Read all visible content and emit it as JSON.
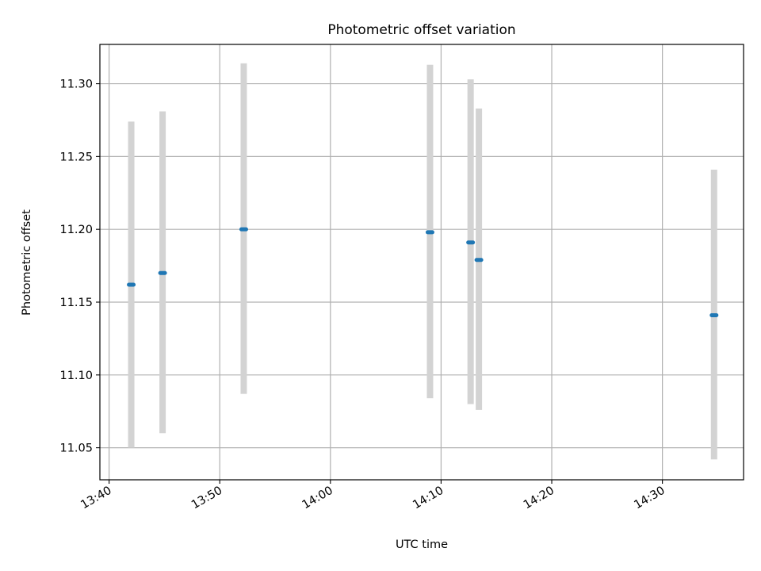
{
  "chart_data": {
    "type": "scatter",
    "title": "Photometric offset variation",
    "xlabel": "UTC time",
    "ylabel": "Photometric offset",
    "x_ticks": [
      "13:40",
      "13:50",
      "14:00",
      "14:10",
      "14:20",
      "14:30"
    ],
    "y_ticks": [
      "11.05",
      "11.10",
      "11.15",
      "11.20",
      "11.25",
      "11.30"
    ],
    "y_tick_values": [
      11.05,
      11.1,
      11.15,
      11.2,
      11.25,
      11.3
    ],
    "xlim": [
      "13:39:10",
      "14:37:20"
    ],
    "ylim": [
      11.028,
      11.327
    ],
    "grid": true,
    "marker_color": "#1f77b4",
    "errorbar_color": "#d3d3d3",
    "points": [
      {
        "x": "13:42:00",
        "y": 11.162,
        "yerr_low": 11.05,
        "yerr_high": 11.274
      },
      {
        "x": "13:44:50",
        "y": 11.17,
        "yerr_low": 11.06,
        "yerr_high": 11.281
      },
      {
        "x": "13:52:10",
        "y": 11.2,
        "yerr_low": 11.087,
        "yerr_high": 11.314
      },
      {
        "x": "14:09:00",
        "y": 11.198,
        "yerr_low": 11.084,
        "yerr_high": 11.313
      },
      {
        "x": "14:12:40",
        "y": 11.191,
        "yerr_low": 11.08,
        "yerr_high": 11.303
      },
      {
        "x": "14:13:25",
        "y": 11.179,
        "yerr_low": 11.076,
        "yerr_high": 11.283
      },
      {
        "x": "14:34:40",
        "y": 11.141,
        "yerr_low": 11.042,
        "yerr_high": 11.241
      }
    ]
  }
}
